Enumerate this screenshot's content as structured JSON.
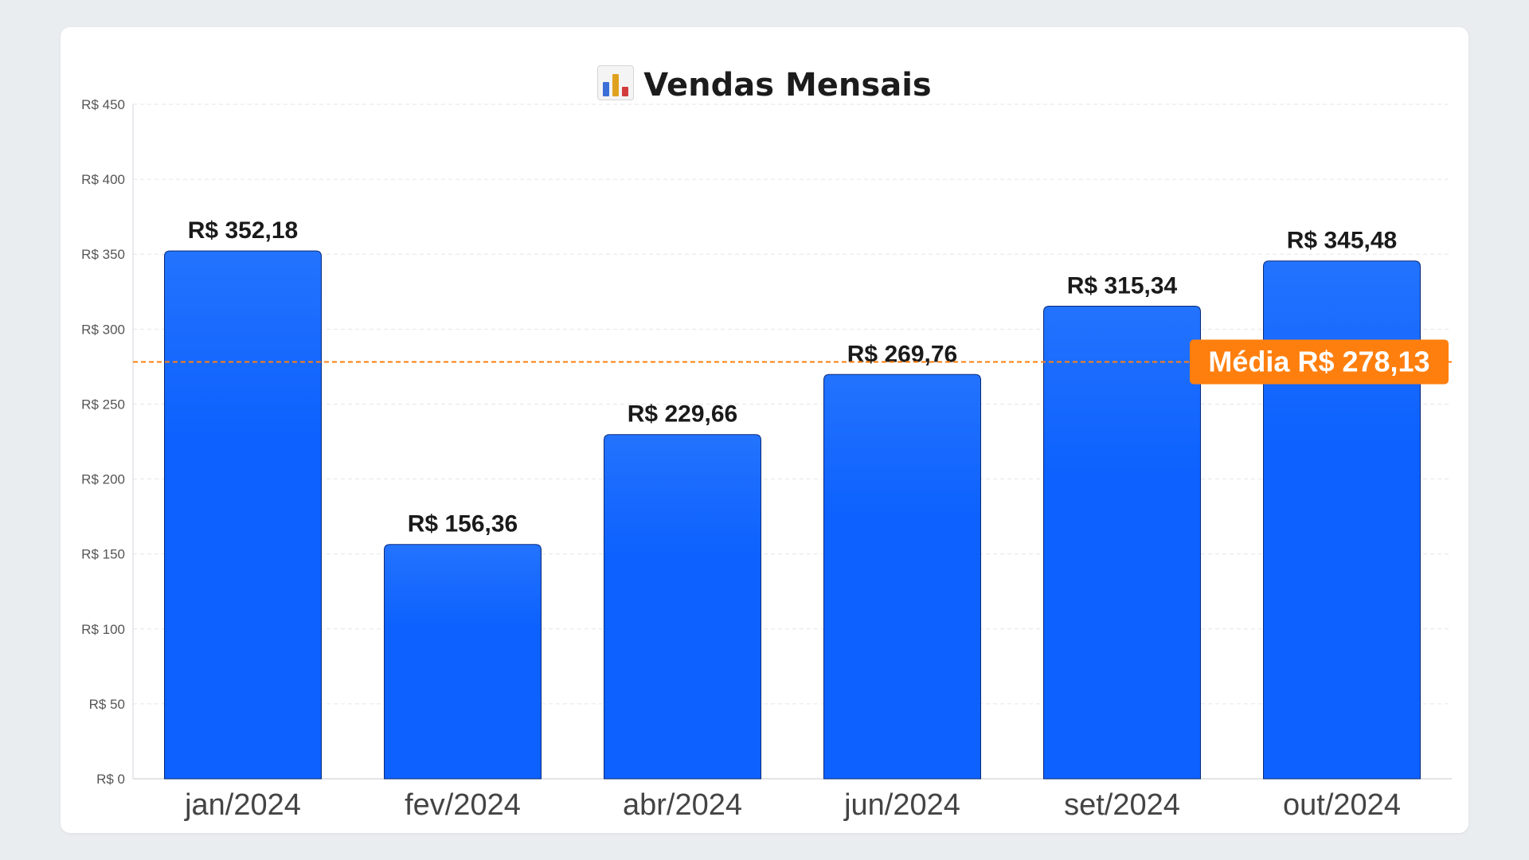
{
  "title": "Vendas Mensais",
  "title_icon": "bar-chart-icon",
  "colors": {
    "bar": "#0d61fe",
    "bar_top": "#2373fe",
    "average": "#ff7f0e",
    "grid": "#e4e6ea"
  },
  "chart_data": {
    "type": "bar",
    "title": "Vendas Mensais",
    "categories": [
      "jan/2024",
      "fev/2024",
      "abr/2024",
      "jun/2024",
      "set/2024",
      "out/2024"
    ],
    "values": [
      352.18,
      156.36,
      229.66,
      269.76,
      315.34,
      345.48
    ],
    "value_labels": [
      "R$ 352,18",
      "R$ 156,36",
      "R$ 229,66",
      "R$ 269,76",
      "R$ 315,34",
      "R$ 345,48"
    ],
    "ylim": [
      0,
      450
    ],
    "yticks": [
      0,
      50,
      100,
      150,
      200,
      250,
      300,
      350,
      400,
      450
    ],
    "ytick_labels": [
      "R$ 0",
      "R$ 50",
      "R$ 100",
      "R$ 150",
      "R$ 200",
      "R$ 250",
      "R$ 300",
      "R$ 350",
      "R$ 400",
      "R$ 450"
    ],
    "grid": true,
    "average": {
      "value": 278.13,
      "label": "Média R$ 278,13"
    }
  }
}
